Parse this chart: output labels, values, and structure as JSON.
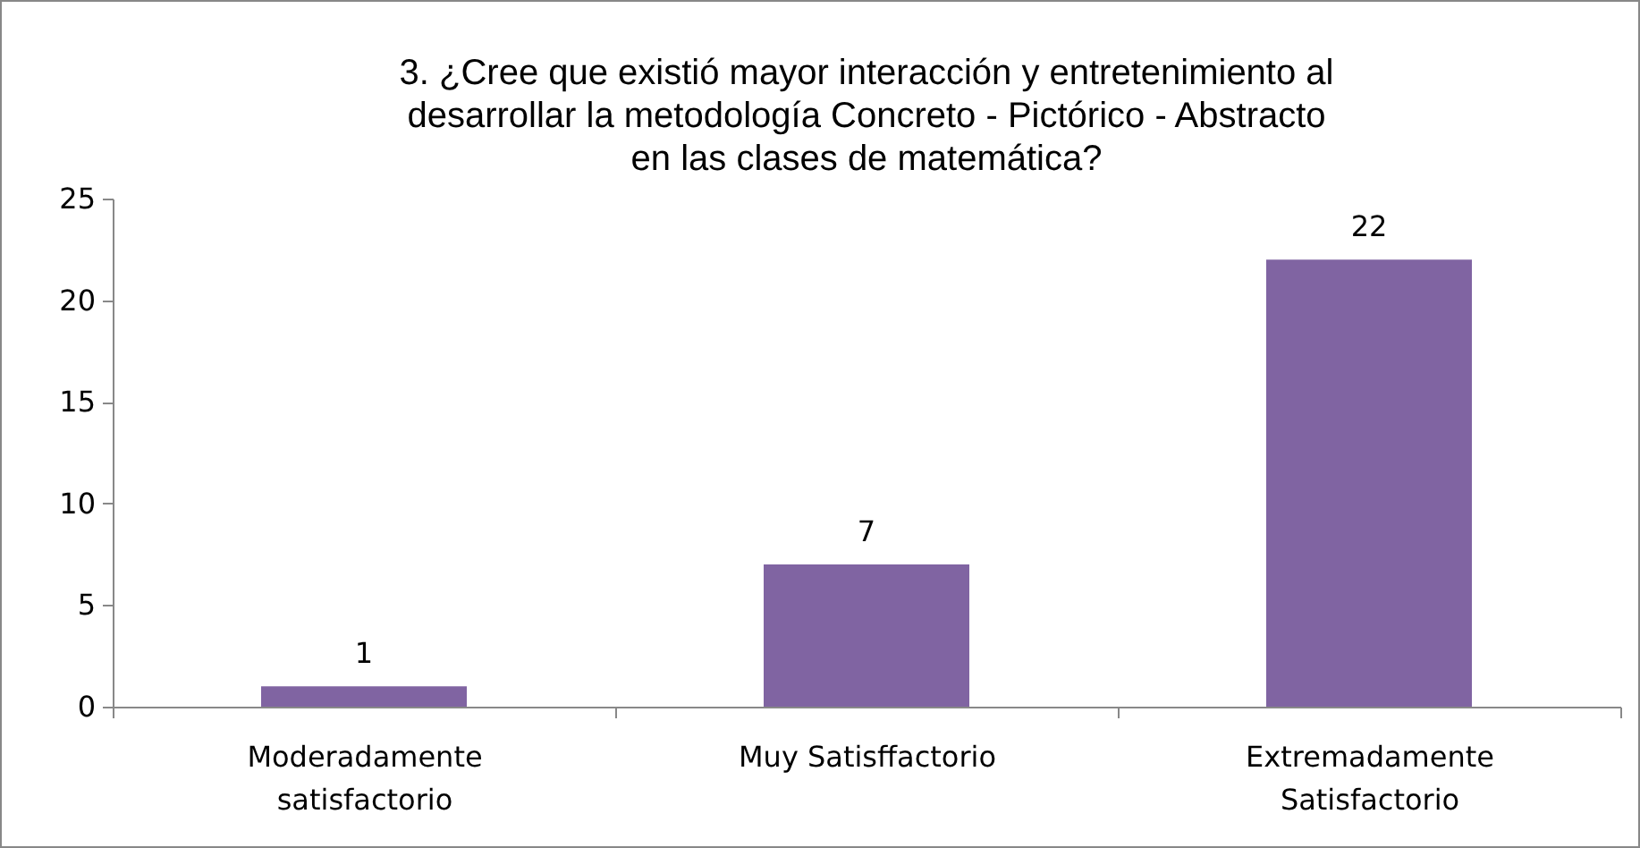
{
  "chart_data": {
    "type": "bar",
    "title": "3. ¿Cree que existió mayor interacción y entretenimiento al desarrollar la metodología Concreto - Pictórico - Abstracto en las clases de matemática?",
    "categories": [
      "Moderadamente satisfactorio",
      "Muy Satisffactorio",
      "Extremadamente Satisfactorio"
    ],
    "values": [
      1,
      7,
      22
    ],
    "color": "#8064a2",
    "ylim": [
      0,
      25
    ],
    "yticks": [
      0,
      5,
      10,
      15,
      20,
      25
    ],
    "data_labels": true
  }
}
